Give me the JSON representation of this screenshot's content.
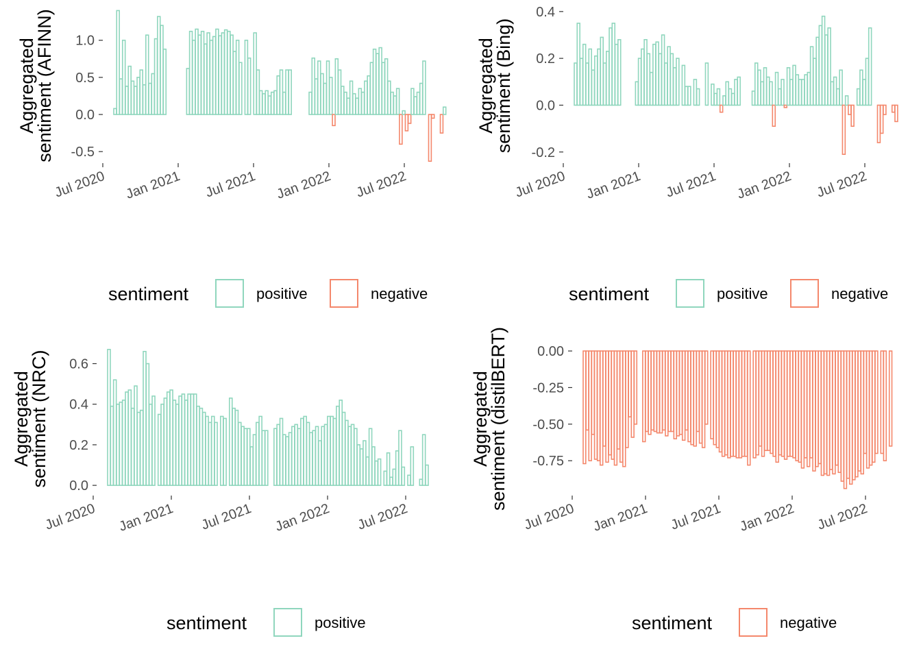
{
  "colors": {
    "positive": "#8fd6bd",
    "negative": "#f4876b",
    "axis": "#333333",
    "text": "#4d4d4d"
  },
  "chart_data": [
    {
      "id": "afinn",
      "type": "bar",
      "ylabel": [
        "Aggregated",
        "sentiment (AFINN)"
      ],
      "ylim": [
        -0.6,
        1.45
      ],
      "yticks": [
        -0.5,
        0.0,
        0.5,
        1.0
      ],
      "ytick_labels": [
        "-0.5",
        "0.0",
        "0.5",
        "1.0"
      ],
      "xticks": [
        "Jul 2020",
        "Jan 2021",
        "Jul 2021",
        "Jan 2022",
        "Jul 2022"
      ],
      "x_first_offset": 3,
      "values": [
        0.08,
        1.4,
        0.48,
        1.0,
        0.38,
        0.65,
        0.45,
        0.38,
        0.5,
        0.6,
        0.4,
        1.07,
        0.42,
        0.55,
        1.02,
        1.32,
        1.2,
        0.88,
        null,
        null,
        null,
        null,
        null,
        null,
        null,
        0.62,
        1.12,
        1.0,
        1.15,
        1.07,
        1.12,
        0.95,
        1.1,
        1.0,
        1.05,
        1.15,
        1.06,
        1.1,
        1.14,
        1.12,
        1.07,
        0.85,
        1.0,
        0.7,
        null,
        1.0,
        0.76,
        null,
        1.1,
        0.6,
        0.32,
        0.28,
        0.32,
        0.25,
        0.3,
        0.32,
        0.52,
        0.6,
        0.3,
        0.6,
        0.6,
        null,
        null,
        null,
        null,
        null,
        null,
        0.3,
        0.76,
        0.48,
        0.72,
        0.55,
        0.42,
        0.72,
        0.5,
        -0.15,
        0.75,
        0.6,
        0.38,
        0.3,
        0.22,
        0.45,
        0.28,
        0.22,
        0.35,
        0.3,
        0.45,
        0.52,
        0.7,
        0.88,
        0.82,
        0.9,
        0.7,
        0.75,
        0.45,
        0.3,
        0.25,
        0.35,
        -0.4,
        0.05,
        -0.22,
        -0.12,
        0.35,
        0.24,
        0.3,
        0.42,
        0.72,
        null,
        -0.63,
        -0.05,
        null,
        null,
        -0.25,
        0.1
      ]
    },
    {
      "id": "bing",
      "type": "bar",
      "ylabel": [
        "Aggregated",
        "sentiment (Bing)"
      ],
      "ylim": [
        -0.23,
        0.42
      ],
      "yticks": [
        -0.2,
        0.0,
        0.2,
        0.4
      ],
      "ytick_labels": [
        "-0.2",
        "0.0",
        "0.2",
        "0.4"
      ],
      "xticks": [
        "Jul 2020",
        "Jan 2021",
        "Jul 2021",
        "Jan 2022",
        "Jul 2022"
      ],
      "x_first_offset": 0.5,
      "values": [
        0.18,
        0.35,
        0.2,
        0.26,
        0.18,
        0.24,
        0.15,
        0.21,
        0.24,
        0.29,
        0.18,
        0.23,
        0.33,
        0.35,
        0.26,
        0.28,
        null,
        null,
        null,
        null,
        null,
        0.1,
        0.2,
        0.24,
        0.28,
        0.22,
        0.14,
        0.26,
        0.27,
        0.22,
        0.3,
        0.18,
        0.25,
        0.22,
        0.16,
        0.2,
        null,
        0.17,
        0.08,
        0.08,
        null,
        0.11,
        0.07,
        null,
        null,
        0.18,
        null,
        0.09,
        0.05,
        0.07,
        -0.03,
        0.04,
        0.1,
        0.07,
        0.05,
        0.11,
        0.12,
        null,
        null,
        null,
        null,
        0.06,
        0.18,
        0.15,
        0.1,
        0.16,
        0.12,
        0.1,
        -0.09,
        0.14,
        0.07,
        0.11,
        -0.01,
        0.16,
        0.11,
        0.17,
        0.13,
        0.11,
        0.11,
        0.13,
        0.14,
        0.25,
        0.2,
        0.29,
        0.34,
        0.38,
        0.3,
        0.33,
        0.1,
        0.12,
        0.07,
        0.15,
        -0.21,
        0.04,
        -0.04,
        -0.09,
        null,
        0.07,
        0.15,
        0.11,
        0.2,
        0.33,
        null,
        null,
        -0.16,
        -0.12,
        -0.04,
        null,
        null,
        -0.03,
        -0.07
      ]
    },
    {
      "id": "nrc",
      "type": "bar",
      "ylabel": [
        "Aggregated",
        "sentiment (NRC)"
      ],
      "ylim": [
        -0.03,
        0.72
      ],
      "yticks": [
        0.0,
        0.2,
        0.4,
        0.6
      ],
      "ytick_labels": [
        "0.0",
        "0.2",
        "0.4",
        "0.6"
      ],
      "xticks": [
        "Jul 2020",
        "Jan 2021",
        "Jul 2021",
        "Jan 2022",
        "Jul 2022"
      ],
      "x_first_offset": 1.5,
      "values": [
        0.67,
        0.39,
        0.52,
        0.4,
        0.41,
        0.42,
        0.46,
        0.47,
        0.38,
        0.49,
        0.36,
        0.37,
        0.66,
        0.6,
        0.4,
        0.44,
        null,
        0.35,
        0.4,
        0.43,
        0.46,
        0.47,
        0.42,
        0.4,
        0.44,
        0.45,
        0.42,
        0.45,
        0.45,
        0.45,
        0.39,
        0.38,
        0.36,
        0.34,
        0.31,
        0.34,
        0.31,
        null,
        0.34,
        0.33,
        null,
        0.43,
        0.38,
        0.37,
        0.31,
        0.29,
        0.28,
        0.28,
        0.19,
        0.25,
        0.31,
        0.34,
        0.27,
        0.27,
        null,
        null,
        0.28,
        0.3,
        0.33,
        0.25,
        0.24,
        0.26,
        0.29,
        0.3,
        0.28,
        0.33,
        0.34,
        0.31,
        0.26,
        0.27,
        0.29,
        0.22,
        0.29,
        0.3,
        0.34,
        0.34,
        0.33,
        0.39,
        0.42,
        0.36,
        0.32,
        0.29,
        0.3,
        0.28,
        0.2,
        0.18,
        0.22,
        0.14,
        0.28,
        0.19,
        0.12,
        0.13,
        null,
        0.07,
        0.16,
        0.04,
        0.08,
        0.17,
        0.27,
        0.09,
        null,
        0.05,
        0.19,
        null,
        null,
        0.03,
        0.25,
        0.1
      ]
    },
    {
      "id": "distilbert",
      "type": "bar",
      "ylabel": [
        "Aggregated",
        "sentiment (distilBERT)"
      ],
      "ylim": [
        -0.96,
        0.08
      ],
      "yticks": [
        -0.75,
        -0.5,
        -0.25,
        0.0
      ],
      "ytick_labels": [
        "-0.75",
        "-0.50",
        "-0.25",
        "0.00"
      ],
      "xticks": [
        "Jul 2020",
        "Jan 2021",
        "Jul 2021",
        "Jan 2022",
        "Jul 2022"
      ],
      "x_first_offset": 2.5,
      "values": [
        -0.77,
        -0.54,
        -0.75,
        -0.57,
        -0.74,
        -0.75,
        -0.78,
        -0.65,
        -0.76,
        -0.71,
        -0.74,
        -0.78,
        -0.67,
        -0.76,
        -0.79,
        -0.66,
        -0.45,
        -0.59,
        -0.5,
        null,
        null,
        -0.62,
        -0.55,
        -0.57,
        -0.54,
        -0.55,
        -0.56,
        -0.56,
        -0.54,
        -0.58,
        -0.55,
        -0.55,
        -0.6,
        -0.58,
        -0.57,
        -0.61,
        -0.54,
        -0.62,
        -0.64,
        -0.65,
        -0.55,
        -0.63,
        -0.66,
        -0.5,
        null,
        -0.6,
        -0.64,
        -0.66,
        -0.69,
        -0.72,
        -0.71,
        -0.73,
        -0.72,
        -0.72,
        -0.73,
        -0.73,
        -0.72,
        -0.72,
        -0.78,
        null,
        -0.73,
        -0.71,
        -0.65,
        -0.72,
        -0.68,
        -0.68,
        -0.7,
        -0.72,
        -0.76,
        -0.71,
        -0.72,
        -0.74,
        -0.72,
        -0.72,
        -0.73,
        -0.75,
        -0.76,
        -0.8,
        -0.73,
        -0.79,
        -0.73,
        -0.82,
        -0.79,
        -0.77,
        -0.85,
        -0.84,
        -0.85,
        -0.81,
        -0.84,
        -0.78,
        -0.83,
        -0.89,
        -0.94,
        -0.87,
        -0.91,
        -0.88,
        -0.86,
        -0.82,
        -0.84,
        -0.7,
        -0.8,
        -0.78,
        -0.76,
        -0.7,
        null,
        -0.7,
        -0.75,
        null,
        -0.65
      ]
    }
  ],
  "legends": [
    {
      "title": "sentiment",
      "items": [
        {
          "label": "positive",
          "key": "positive"
        },
        {
          "label": "negative",
          "key": "negative"
        }
      ]
    },
    {
      "title": "sentiment",
      "items": [
        {
          "label": "positive",
          "key": "positive"
        },
        {
          "label": "negative",
          "key": "negative"
        }
      ]
    },
    {
      "title": "sentiment",
      "items": [
        {
          "label": "positive",
          "key": "positive"
        }
      ]
    },
    {
      "title": "sentiment",
      "items": [
        {
          "label": "negative",
          "key": "negative"
        }
      ]
    }
  ]
}
